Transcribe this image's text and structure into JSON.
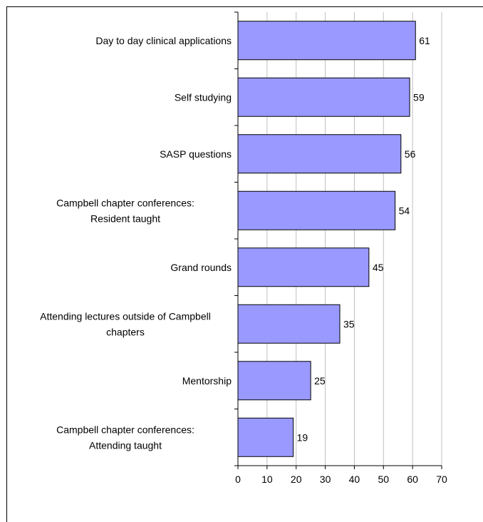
{
  "chart_data": {
    "type": "bar",
    "orientation": "horizontal",
    "categories": [
      "Day to day clinical applications",
      "Self studying",
      "SASP questions",
      "Campbell chapter conferences: Resident taught",
      "Grand rounds",
      "Attending lectures outside of Campbell chapters",
      "Mentorship",
      "Campbell chapter conferences: Attending taught"
    ],
    "category_lines": [
      [
        "Day to day clinical applications"
      ],
      [
        "Self studying"
      ],
      [
        "SASP questions"
      ],
      [
        "Campbell chapter conferences:",
        "Resident taught"
      ],
      [
        "Grand rounds"
      ],
      [
        "Attending lectures outside of Campbell",
        "chapters"
      ],
      [
        "Mentorship"
      ],
      [
        "Campbell chapter conferences:",
        "Attending taught"
      ]
    ],
    "values": [
      61,
      59,
      56,
      54,
      45,
      35,
      25,
      19
    ],
    "data_labels": [
      "61",
      "59",
      "56",
      "54",
      "45",
      "35",
      "25",
      "19"
    ],
    "x_ticks": [
      "0",
      "10",
      "20",
      "30",
      "40",
      "50",
      "60",
      "70"
    ],
    "xlim": [
      0,
      70
    ],
    "grid": true,
    "legend": "none",
    "colors": {
      "bar_fill": "#9999ff",
      "bar_stroke": "#000000",
      "grid": "#c0c0c0",
      "axis": "#000000"
    }
  }
}
